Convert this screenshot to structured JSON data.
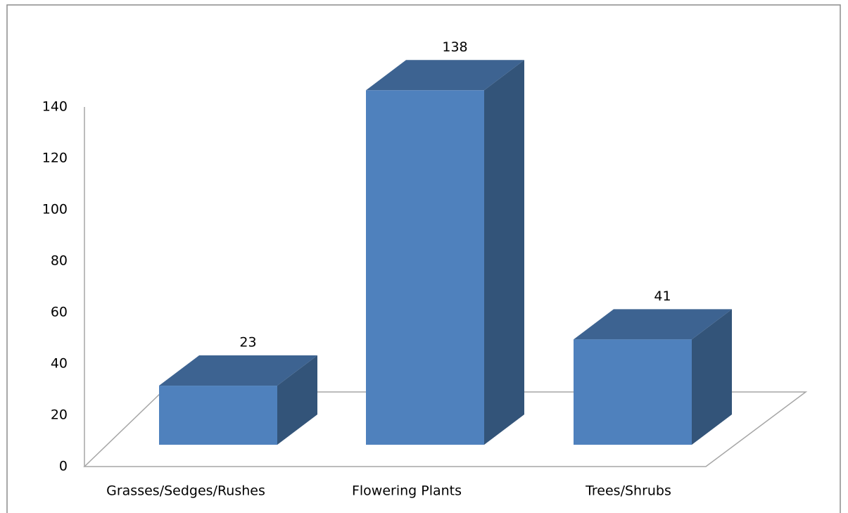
{
  "chart_data": {
    "type": "bar3d",
    "categories": [
      "Grasses/Sedges/Rushes",
      "Flowering Plants",
      "Trees/Shrubs"
    ],
    "values": [
      23,
      138,
      41
    ],
    "color": "#4f81bd",
    "ylim": [
      0,
      140
    ],
    "yticks": [
      0,
      20,
      40,
      60,
      80,
      100,
      120,
      140
    ]
  }
}
